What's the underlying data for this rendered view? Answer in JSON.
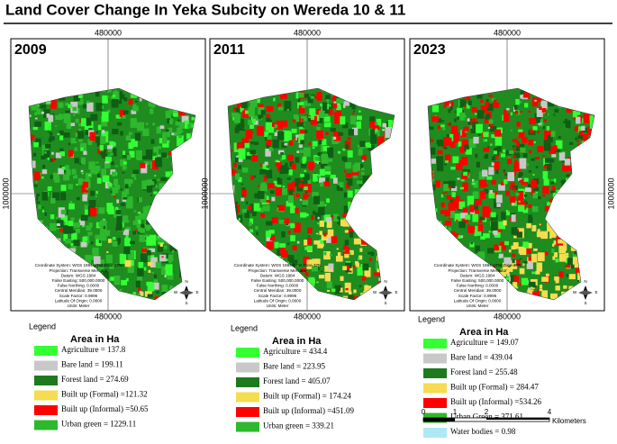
{
  "title": "Land Cover Change In Yeka Subcity on Wereda 10 & 11",
  "panels": [
    {
      "year": "2009",
      "top_coord": "480000",
      "bottom_coord": "480000",
      "side_coord": "1000000",
      "legend_title": "Legend",
      "legend_heading": "Area in Ha",
      "items": [
        {
          "text": "Agriculture = 137.8",
          "color": "#33ff33"
        },
        {
          "text": "Bare land = 199.11",
          "color": "#c8c8c8"
        },
        {
          "text": "Forest land = 274.69",
          "color": "#1e7a1e"
        },
        {
          "text": "Built up (Formal) =121.32",
          "color": "#f5dc50"
        },
        {
          "text": "Built up (Informal) =50.65",
          "color": "#ff0000"
        },
        {
          "text": "Urban green = 1229.11",
          "color": "#2db82d"
        }
      ]
    },
    {
      "year": "2011",
      "top_coord": "480000",
      "bottom_coord": "480000",
      "side_coord": "1000000",
      "legend_title": "Legend",
      "legend_heading": "Area in Ha",
      "items": [
        {
          "text": "Agriculture = 434.4",
          "color": "#33ff33"
        },
        {
          "text": "Bare land = 223.95",
          "color": "#c8c8c8"
        },
        {
          "text": "Forest land = 405.07",
          "color": "#1e7a1e"
        },
        {
          "text": "Built up (Formal) = 174.24",
          "color": "#f5dc50"
        },
        {
          "text": "Built up (Informal) =451.09",
          "color": "#ff0000"
        },
        {
          "text": "Urban green = 339.21",
          "color": "#2db82d"
        }
      ]
    },
    {
      "year": "2023",
      "top_coord": "480000",
      "bottom_coord": "480000",
      "side_coord": "1000000",
      "legend_title": "Legend",
      "legend_heading": "Area in Ha",
      "items": [
        {
          "text": "Agriculture = 149.07",
          "color": "#33ff33"
        },
        {
          "text": "Bare land = 439.04",
          "color": "#c8c8c8"
        },
        {
          "text": "Forest land = 255.48",
          "color": "#1e7a1e"
        },
        {
          "text": "Built up (Formal) = 284.47",
          "color": "#f5dc50"
        },
        {
          "text": "Built up (Informal) =534.26",
          "color": "#ff0000"
        },
        {
          "text": "Urban Green = 371.61",
          "color": "#2db82d"
        },
        {
          "text": "Water bodies = 0.98",
          "color": "#aee8f5"
        }
      ]
    }
  ],
  "metadata": [
    "Coordinate System: WGS 1984 UTM Zone 37N",
    "Projection: Transverse Mercator",
    "Datum: WGS 1984",
    "False Easting: 500,000.0000",
    "False Northing: 0.0000",
    "Central Meridian: 39.0000",
    "Scale Factor: 0.9996",
    "Latitude Of Origin: 0.0000",
    "Units: Meter"
  ],
  "compass": {
    "n": "N",
    "s": "S",
    "e": "E",
    "w": "W"
  },
  "scale_bar": {
    "labels": [
      "0",
      "1",
      "2",
      "4"
    ],
    "unit": "Kilometers"
  }
}
